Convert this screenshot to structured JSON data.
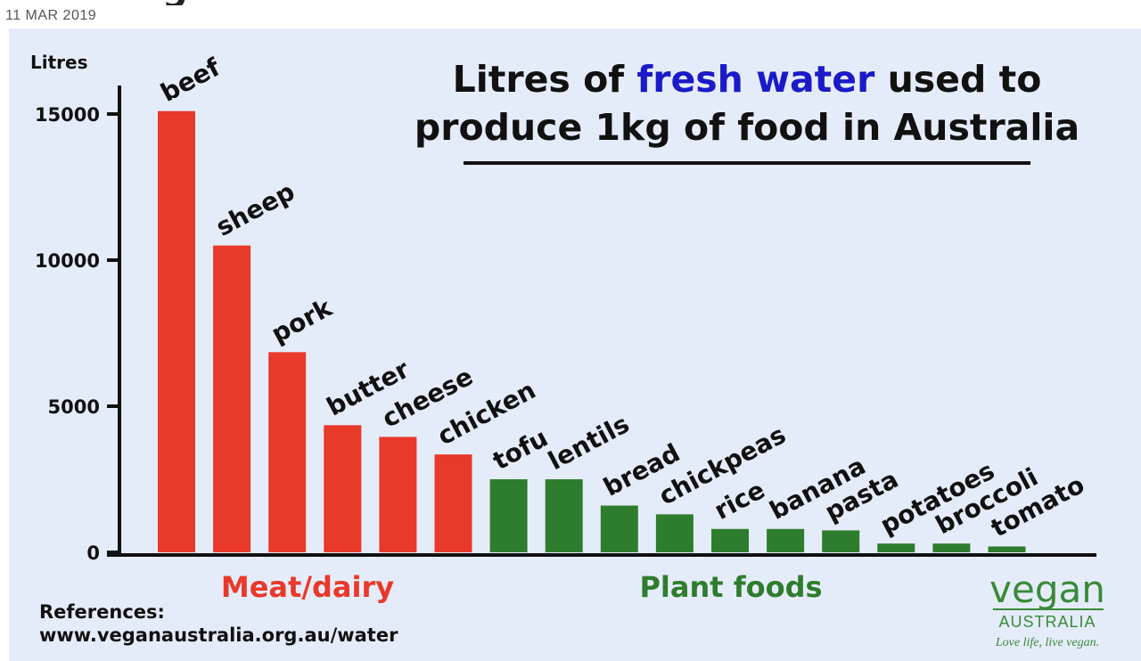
{
  "page": {
    "date": "11 MAR 2019",
    "cropped_heading_glyph": "g"
  },
  "chart_data": {
    "type": "bar",
    "title": {
      "before": "Litres of ",
      "highlight": "fresh water",
      "after": " used to",
      "line2": "produce 1kg of food in Australia"
    },
    "ylabel": "Litres",
    "ylim": [
      0,
      16000
    ],
    "yticks": [
      0,
      5000,
      10000,
      15000
    ],
    "grid": false,
    "categories": [
      "beef",
      "sheep",
      "pork",
      "butter",
      "cheese",
      "chicken",
      "tofu",
      "lentils",
      "bread",
      "chickpeas",
      "rice",
      "banana",
      "pasta",
      "potatoes",
      "broccoli",
      "tomato"
    ],
    "series": [
      {
        "name": "Meat/dairy",
        "color": "#e8392a",
        "values": [
          15100,
          10500,
          6850,
          4350,
          3950,
          3350,
          null,
          null,
          null,
          null,
          null,
          null,
          null,
          null,
          null,
          null
        ]
      },
      {
        "name": "Plant foods",
        "color": "#2e7d2e",
        "values": [
          null,
          null,
          null,
          null,
          null,
          null,
          2500,
          2500,
          1600,
          1300,
          800,
          800,
          750,
          300,
          300,
          200
        ]
      }
    ],
    "colors": {
      "title_highlight": "#1a1ac8",
      "axis": "#111111",
      "meat": "#e8392a",
      "plant": "#2e7d2e",
      "brand": "#3a8a3a"
    }
  },
  "references": {
    "label": "References:",
    "url": "www.veganaustralia.org.au/water"
  },
  "brand": {
    "name": "vegan",
    "sub": "AUSTRALIA",
    "tagline": "Love life, live vegan."
  }
}
